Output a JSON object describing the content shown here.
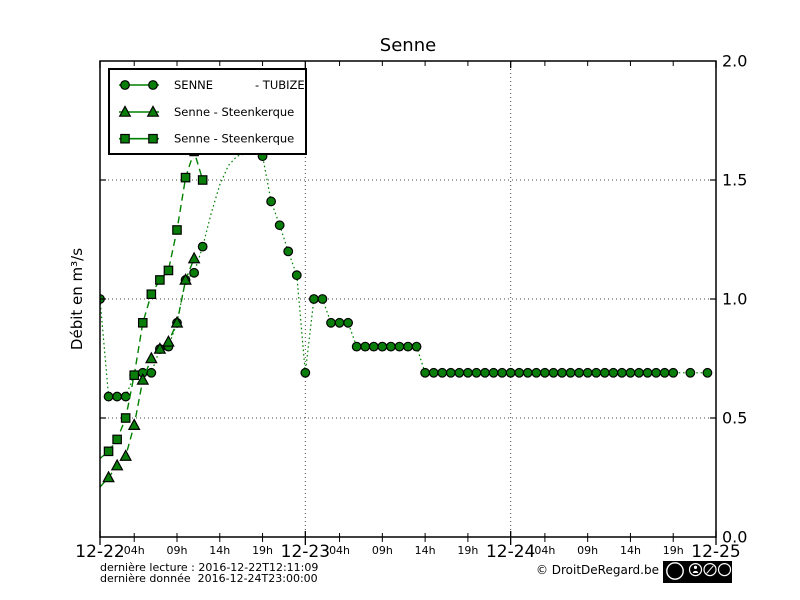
{
  "title": "Senne",
  "axes": {
    "ylabel": "Débit en m³/s",
    "ylim": [
      0.0,
      2.0
    ],
    "ytick_values": [
      0.0,
      0.5,
      1.0,
      1.5,
      2.0
    ],
    "ytick_labels": [
      "0.0",
      "0.5",
      "1.0",
      "1.5",
      "2.0"
    ],
    "grid_values": [
      0.5,
      1.0,
      1.5
    ],
    "day_labels": [
      "12-22",
      "12-23",
      "12-24",
      "12-25"
    ],
    "day_offsets_h": [
      0,
      24,
      48,
      72
    ],
    "hour_tick_labels": [
      "04h",
      "09h",
      "14h",
      "19h"
    ],
    "hour_tick_offsets": [
      4,
      9,
      14,
      19
    ],
    "day_boundary_gridlines_h": [
      24,
      48
    ]
  },
  "legend": {
    "entries": [
      {
        "marker": "circle",
        "text": "SENNE",
        "text2": "- TUBIZE"
      },
      {
        "marker": "triangle",
        "text": "Senne - Steenkerque",
        "text2": ""
      },
      {
        "marker": "square",
        "text": "Senne - Steenkerque",
        "text2": ""
      }
    ]
  },
  "footer": {
    "last_reading": "dernière lecture : 2016-12-22T12:11:09",
    "last_data": "dernière donnée  2016-12-24T23:00:00",
    "copyright": "© DroitDeRegard.be",
    "license_logo": "cc",
    "license_terms": [
      "BY",
      "NC",
      "SA"
    ]
  },
  "colors": {
    "line_green": "#008000",
    "marker_fill": "#0a7e0a",
    "marker_edge": "#000000",
    "grid": "#444444",
    "badge_bg": "#000000",
    "badge_fg": "#ffffff"
  },
  "chart_data": {
    "type": "line",
    "title": "Senne",
    "xlabel": "",
    "ylabel": "Débit en m³/s",
    "ylim": [
      0,
      2
    ],
    "grid": "dotted horizontal lines at 0.5/1.0/1.5 and vertical dotted lines at day boundaries 12-23 and 12-24",
    "legend_position": "upper left",
    "x_unit": "hours since 2016-12-22 00:00 (x axis spans 12-22 to 12-25)",
    "series": [
      {
        "name": "SENNE - TUBIZE",
        "marker": "circle",
        "linestyle": "dotted",
        "points": [
          [
            0,
            1.0
          ],
          [
            1,
            0.59
          ],
          [
            2,
            0.59
          ],
          [
            3,
            0.59
          ],
          [
            4,
            0.68
          ],
          [
            5,
            0.69
          ],
          [
            6,
            0.69
          ],
          [
            7,
            0.79
          ],
          [
            8,
            0.8
          ],
          [
            9,
            0.9
          ],
          [
            10,
            1.08
          ],
          [
            11,
            1.11
          ],
          [
            12,
            1.22
          ],
          [
            13,
            1.36
          ],
          [
            14,
            1.48
          ],
          [
            15,
            1.56
          ],
          [
            16,
            1.6
          ],
          [
            17,
            1.61
          ],
          [
            18,
            1.61
          ],
          [
            19,
            1.6
          ],
          [
            20,
            1.41
          ],
          [
            21,
            1.31
          ],
          [
            22,
            1.2
          ],
          [
            23,
            1.1
          ],
          [
            24,
            0.69
          ],
          [
            25,
            1.0
          ],
          [
            26,
            1.0
          ],
          [
            27,
            0.9
          ],
          [
            28,
            0.9
          ],
          [
            29,
            0.9
          ],
          [
            30,
            0.8
          ],
          [
            31,
            0.8
          ],
          [
            32,
            0.8
          ],
          [
            33,
            0.8
          ],
          [
            34,
            0.8
          ],
          [
            35,
            0.8
          ],
          [
            36,
            0.8
          ],
          [
            37,
            0.8
          ],
          [
            38,
            0.69
          ],
          [
            39,
            0.69
          ],
          [
            40,
            0.69
          ],
          [
            41,
            0.69
          ],
          [
            42,
            0.69
          ],
          [
            43,
            0.69
          ],
          [
            44,
            0.69
          ],
          [
            45,
            0.69
          ],
          [
            46,
            0.69
          ],
          [
            47,
            0.69
          ],
          [
            48,
            0.69
          ],
          [
            49,
            0.69
          ],
          [
            50,
            0.69
          ],
          [
            51,
            0.69
          ],
          [
            52,
            0.69
          ],
          [
            53,
            0.69
          ],
          [
            54,
            0.69
          ],
          [
            55,
            0.69
          ],
          [
            56,
            0.69
          ],
          [
            57,
            0.69
          ],
          [
            58,
            0.69
          ],
          [
            59,
            0.69
          ],
          [
            60,
            0.69
          ],
          [
            61,
            0.69
          ],
          [
            62,
            0.69
          ],
          [
            63,
            0.69
          ],
          [
            64,
            0.69
          ],
          [
            65,
            0.69
          ],
          [
            66,
            0.69
          ],
          [
            67,
            0.69
          ],
          [
            69,
            0.69
          ],
          [
            71,
            0.69
          ]
        ],
        "line_only_t": [
          13,
          14,
          15,
          16,
          17,
          18
        ]
      },
      {
        "name": "Senne - Steenkerque",
        "marker": "triangle",
        "linestyle": "dashed",
        "points": [
          [
            0,
            0.21
          ],
          [
            1,
            0.25
          ],
          [
            2,
            0.3
          ],
          [
            3,
            0.34
          ],
          [
            4,
            0.47
          ],
          [
            5,
            0.66
          ],
          [
            6,
            0.75
          ],
          [
            7,
            0.79
          ],
          [
            8,
            0.82
          ],
          [
            9,
            0.9
          ],
          [
            10,
            1.08
          ],
          [
            11,
            1.17
          ]
        ],
        "line_only_t": [
          0
        ]
      },
      {
        "name": "Senne - Steenkerque",
        "marker": "square",
        "linestyle": "dashed",
        "points": [
          [
            0,
            0.33
          ],
          [
            1,
            0.36
          ],
          [
            2,
            0.41
          ],
          [
            3,
            0.5
          ],
          [
            4,
            0.68
          ],
          [
            5,
            0.9
          ],
          [
            6,
            1.02
          ],
          [
            7,
            1.08
          ],
          [
            8,
            1.12
          ],
          [
            9,
            1.29
          ],
          [
            10,
            1.51
          ],
          [
            11,
            1.62
          ],
          [
            12,
            1.5
          ]
        ],
        "line_only_t": [
          0
        ]
      }
    ]
  }
}
